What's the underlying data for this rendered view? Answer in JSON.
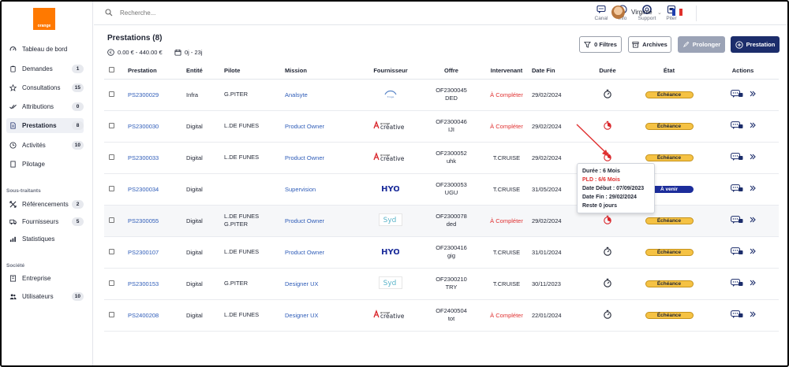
{
  "brand": {
    "logo_text": "orange",
    "accent": "#ff7900"
  },
  "sidebar": {
    "items": [
      {
        "label": "Tableau de bord",
        "icon": "speedometer-icon",
        "count": ""
      },
      {
        "label": "Demandes",
        "icon": "clipboard-icon",
        "count": "1"
      },
      {
        "label": "Consultations",
        "icon": "star-icon",
        "count": "15"
      },
      {
        "label": "Attributions",
        "icon": "check-double-icon",
        "count": "0"
      },
      {
        "label": "Prestations",
        "icon": "document-icon",
        "count": "8"
      },
      {
        "label": "Activités",
        "icon": "clock-icon",
        "count": "10"
      },
      {
        "label": "Pilotage",
        "icon": "page-icon",
        "count": ""
      }
    ],
    "section_subcontractors": "Sous-traitants",
    "subcontractor_items": [
      {
        "label": "Référencements",
        "icon": "cross-arrows-icon",
        "count": "2"
      },
      {
        "label": "Fournisseurs",
        "icon": "truck-icon",
        "count": "5"
      },
      {
        "label": "Statistiques",
        "icon": "stats-icon",
        "count": ""
      }
    ],
    "section_company": "Société",
    "company_items": [
      {
        "label": "Entreprise",
        "icon": "building-icon",
        "count": ""
      },
      {
        "label": "Utilisateurs",
        "icon": "users-icon",
        "count": "10"
      }
    ]
  },
  "topbar": {
    "search_placeholder": "Recherche...",
    "tools": [
      {
        "label": "Canal",
        "icon": "chat-icon"
      },
      {
        "label": "Info",
        "icon": "info-icon"
      },
      {
        "label": "Support",
        "icon": "lifebuoy-icon"
      },
      {
        "label": "Piter",
        "icon": "bot-icon"
      }
    ],
    "user_name": "Virginie",
    "language": "FR"
  },
  "page": {
    "title": "Prestations (8)",
    "amount_range": "0.00 € - 440.00 €",
    "day_range": "0j - 23j",
    "buttons": {
      "filters": "0 Filtres",
      "archives": "Archives",
      "extend": "Prolonger",
      "add": "Prestation"
    }
  },
  "table": {
    "headers": [
      "Prestation",
      "Entité",
      "Pilote",
      "Mission",
      "Fournisseur",
      "Offre",
      "Intervenant",
      "Date Fin",
      "Durée",
      "État",
      "Actions"
    ],
    "rows": [
      {
        "id": "PS2300029",
        "entity": "Infra",
        "pilot": "G.PITER",
        "pilot2": "",
        "mission": "Analsyte",
        "supplier": "fringe",
        "offer1": "OF2300045",
        "offer2": "DED",
        "worker": "À Compléter",
        "worker_missing": true,
        "end": "29/02/2024",
        "timer_alert": false,
        "state": "Échéance",
        "state_type": "due"
      },
      {
        "id": "PS2300030",
        "entity": "Digital",
        "pilot": "L.DE FUNES",
        "pilot2": "",
        "mission": "Product Owner",
        "supplier": "creative",
        "offer1": "OF2300046",
        "offer2": "IJI",
        "worker": "À Compléter",
        "worker_missing": true,
        "end": "29/02/2024",
        "timer_alert": true,
        "state": "Échéance",
        "state_type": "due"
      },
      {
        "id": "PS2300033",
        "entity": "Digital",
        "pilot": "L.DE FUNES",
        "pilot2": "",
        "mission": "Product Owner",
        "supplier": "creative",
        "offer1": "OF2300052",
        "offer2": "uhk",
        "worker": "T.CRUISE",
        "worker_missing": false,
        "end": "29/02/2024",
        "timer_alert": true,
        "state": "Échéance",
        "state_type": "due"
      },
      {
        "id": "PS2300034",
        "entity": "Digital",
        "pilot": "",
        "pilot2": "",
        "mission": "Supervision",
        "supplier": "hyo",
        "offer1": "OF2300053",
        "offer2": "UGU",
        "worker": "T.CRUISE",
        "worker_missing": false,
        "end": "31/05/2024",
        "timer_alert": false,
        "state": "À venir",
        "state_type": "upcoming"
      },
      {
        "id": "PS2300055",
        "entity": "Digital",
        "pilot": "L.DE FUNES",
        "pilot2": "G.PITER",
        "mission": "Product Owner",
        "supplier": "syd",
        "offer1": "OF2300078",
        "offer2": "ded",
        "worker": "À Compléter",
        "worker_missing": true,
        "end": "29/02/2024",
        "timer_alert": true,
        "state": "Échéance",
        "state_type": "due"
      },
      {
        "id": "PS2300107",
        "entity": "Digital",
        "pilot": "L.DE FUNES",
        "pilot2": "",
        "mission": "Product Owner",
        "supplier": "hyo",
        "offer1": "OF2300416",
        "offer2": "gig",
        "worker": "T.CRUISE",
        "worker_missing": false,
        "end": "31/01/2024",
        "timer_alert": false,
        "state": "Échéance",
        "state_type": "due"
      },
      {
        "id": "PS2300153",
        "entity": "Digital",
        "pilot": "G.PITER",
        "pilot2": "",
        "mission": "Designer UX",
        "supplier": "syd",
        "offer1": "OF2300210",
        "offer2": "TRY",
        "worker": "T.CRUISE",
        "worker_missing": false,
        "end": "30/11/2023",
        "timer_alert": false,
        "state": "Échéance",
        "state_type": "due"
      },
      {
        "id": "PS2400208",
        "entity": "Digital",
        "pilot": "L.DE FUNES",
        "pilot2": "",
        "mission": "Designer UX",
        "supplier": "creative",
        "offer1": "OF2400504",
        "offer2": "tot",
        "worker": "À Compléter",
        "worker_missing": true,
        "end": "22/01/2024",
        "timer_alert": false,
        "state": "Échéance",
        "state_type": "due"
      }
    ]
  },
  "tooltip": {
    "duration": "Durée :  6 Mois",
    "pld": "PLD :  6/6 Mois",
    "start": "Date Début :  07/09/2023",
    "end": "Date Fin :  29/02/2024",
    "remaining": "Reste 0 jours"
  },
  "colors": {
    "primary": "#1c2d6b",
    "link": "#2e5cb8",
    "alert": "#e03131",
    "due_badge": "#f5c244",
    "upcoming_badge": "#1c2d9b"
  }
}
